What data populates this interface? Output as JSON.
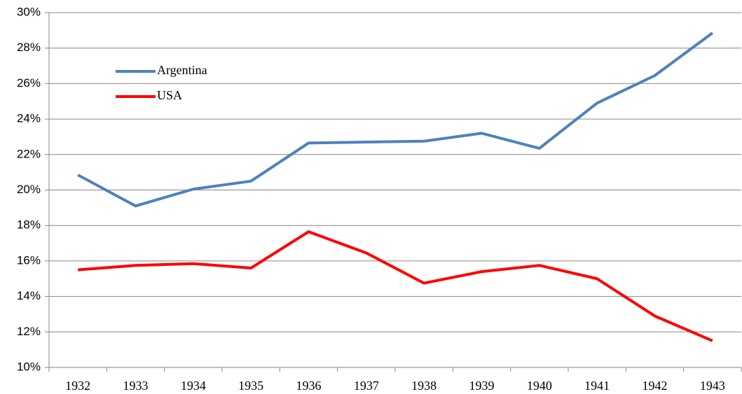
{
  "chart_data": {
    "type": "line",
    "categories": [
      "1932",
      "1933",
      "1934",
      "1935",
      "1936",
      "1937",
      "1938",
      "1939",
      "1940",
      "1941",
      "1942",
      "1943"
    ],
    "series": [
      {
        "name": "Argentina",
        "color": "#4f81bd",
        "values": [
          20.85,
          19.1,
          20.05,
          20.5,
          22.65,
          22.7,
          22.75,
          23.2,
          22.35,
          24.9,
          26.45,
          28.85
        ]
      },
      {
        "name": "USA",
        "color": "#ff0000",
        "values": [
          15.5,
          15.75,
          15.85,
          15.6,
          17.65,
          16.45,
          14.75,
          15.4,
          15.75,
          15.0,
          12.9,
          11.5
        ]
      }
    ],
    "ylim": [
      10,
      30
    ],
    "yticks": [
      {
        "value": 10,
        "label": "10%"
      },
      {
        "value": 12,
        "label": "12%"
      },
      {
        "value": 14,
        "label": "14%"
      },
      {
        "value": 16,
        "label": "16%"
      },
      {
        "value": 18,
        "label": "18%"
      },
      {
        "value": 20,
        "label": "20%"
      },
      {
        "value": 22,
        "label": "22%"
      },
      {
        "value": 24,
        "label": "24%"
      },
      {
        "value": 26,
        "label": "26%"
      },
      {
        "value": 28,
        "label": "28%"
      },
      {
        "value": 30,
        "label": "30%"
      }
    ],
    "grid": true
  }
}
